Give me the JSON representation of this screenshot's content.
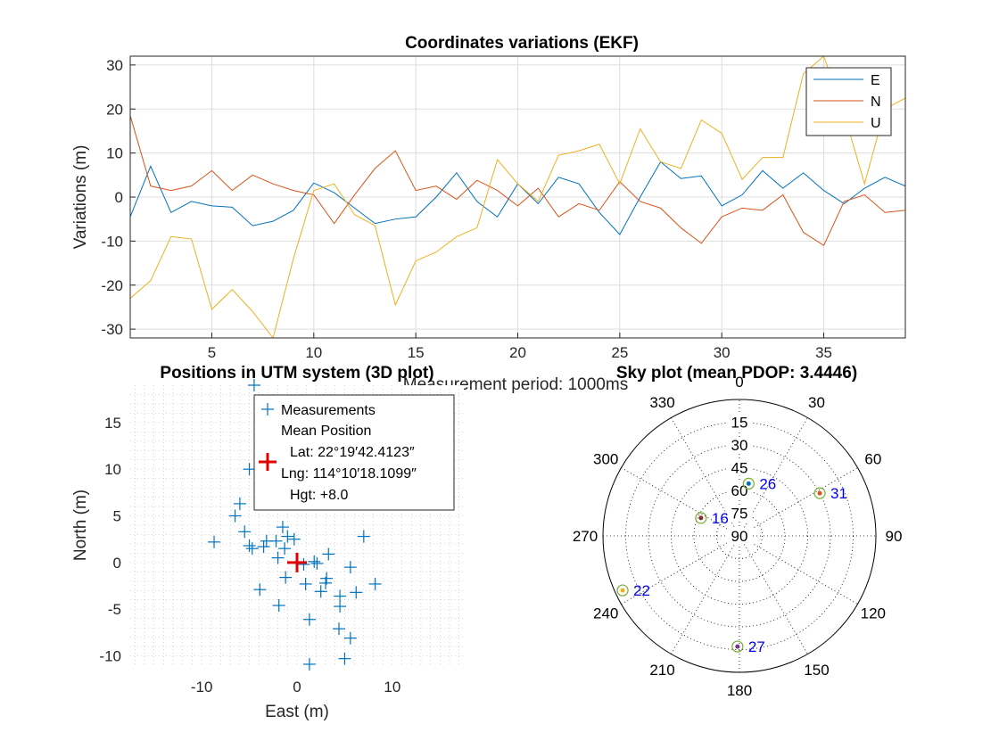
{
  "colors": {
    "E": "#0072BD",
    "N": "#D95319",
    "U": "#EDB120",
    "measurement": "#0072BD",
    "mean_position": "#E00000",
    "sat_label": "#0000EE",
    "grid": "#DDDDDD"
  },
  "chart_data": [
    {
      "type": "line",
      "title": "Coordinates variations (EKF)",
      "xlabel": "Measurement period: 1000ms",
      "ylabel": "Variations (m)",
      "xlim": [
        1,
        39
      ],
      "ylim": [
        -32,
        32
      ],
      "xticks": [
        5,
        10,
        15,
        20,
        25,
        30,
        35
      ],
      "yticks": [
        -30,
        -20,
        -10,
        0,
        10,
        20,
        30
      ],
      "grid": true,
      "legend_position": "top-right",
      "x": [
        1,
        2,
        3,
        4,
        5,
        6,
        7,
        8,
        9,
        10,
        11,
        12,
        13,
        14,
        15,
        16,
        17,
        18,
        19,
        20,
        21,
        22,
        23,
        24,
        25,
        26,
        27,
        28,
        29,
        30,
        31,
        32,
        33,
        34,
        35,
        36,
        37,
        38,
        39
      ],
      "series": [
        {
          "name": "E",
          "values": [
            -4.5,
            7,
            -3.5,
            -1,
            -2,
            -2.3,
            -6.5,
            -5.5,
            -3,
            3.2,
            1,
            -2.5,
            -6,
            -5,
            -4.5,
            0,
            5.5,
            -1,
            -4.5,
            3,
            -1.5,
            4.5,
            3,
            -3.5,
            -8.5,
            0,
            8,
            4.2,
            4.8,
            -2,
            0.5,
            6,
            2,
            5.5,
            1.5,
            -1.5,
            2,
            4.5,
            2.5
          ]
        },
        {
          "name": "N",
          "values": [
            18.5,
            2.5,
            1.5,
            2.5,
            6,
            1.5,
            5,
            3,
            1.5,
            0.5,
            -6,
            0.5,
            6.5,
            10.5,
            1.5,
            2.5,
            -0.5,
            3.8,
            1.5,
            -2,
            2,
            -4.5,
            -1.5,
            -3,
            3.5,
            -1,
            -2.5,
            -7,
            -10.5,
            -4.5,
            -2.5,
            -3,
            0.5,
            -8,
            -11,
            -1,
            0.5,
            -3.5,
            -3
          ]
        },
        {
          "name": "U",
          "values": [
            -23,
            -19,
            -9,
            -9.5,
            -25.5,
            -21,
            -26,
            -32,
            -14,
            1.5,
            3,
            -4,
            -6.5,
            -24.5,
            -14.5,
            -12.5,
            -9,
            -7,
            8.5,
            3,
            -1,
            9.5,
            10.5,
            12,
            3,
            15.5,
            8,
            6.5,
            17.5,
            14.5,
            4,
            9,
            9,
            28,
            32,
            19,
            3,
            20,
            22.5
          ]
        }
      ]
    },
    {
      "type": "scatter",
      "title": "Positions in UTM system (3D plot)",
      "xlabel": "East (m)",
      "ylabel": "North (m)",
      "xlim": [
        -17.5,
        17.5
      ],
      "ylim": [
        -11,
        19
      ],
      "xticks": [
        -10,
        0,
        10
      ],
      "yticks": [
        -10,
        -5,
        0,
        5,
        10,
        15
      ],
      "grid": true,
      "legend_position": "top",
      "legend": {
        "measurements": "Measurements",
        "mean_title": "Mean Position",
        "lat": "Lat: 22°19′42.4123″",
        "lng": "Lng: 114°10′18.1099″",
        "hgt": "Hgt: +8.0"
      },
      "mean_position": {
        "x": 0,
        "y": 0
      },
      "points": [
        {
          "x": -4.5,
          "y": 19
        },
        {
          "x": -5,
          "y": 10
        },
        {
          "x": -6,
          "y": 6.3
        },
        {
          "x": -6.5,
          "y": 5
        },
        {
          "x": -5.5,
          "y": 3.3
        },
        {
          "x": -8.7,
          "y": 2.2
        },
        {
          "x": -4.7,
          "y": 1.5
        },
        {
          "x": -5,
          "y": 1.8
        },
        {
          "x": -3.5,
          "y": 1.7
        },
        {
          "x": -3.2,
          "y": 2.3
        },
        {
          "x": -2.2,
          "y": 2.3
        },
        {
          "x": -1.5,
          "y": 3.8
        },
        {
          "x": -1,
          "y": 2.8
        },
        {
          "x": -0.3,
          "y": 2.5
        },
        {
          "x": -2,
          "y": 0.5
        },
        {
          "x": -1.3,
          "y": 1.5
        },
        {
          "x": 0.7,
          "y": -0.2
        },
        {
          "x": 1.8,
          "y": 0.1
        },
        {
          "x": 2.1,
          "y": -0.1
        },
        {
          "x": 3.3,
          "y": 0.9
        },
        {
          "x": 7,
          "y": 2.8
        },
        {
          "x": -1.2,
          "y": -1.6
        },
        {
          "x": 0.9,
          "y": -2.3
        },
        {
          "x": 2.5,
          "y": -3.1
        },
        {
          "x": 3,
          "y": -2.2
        },
        {
          "x": 3.1,
          "y": -1.7
        },
        {
          "x": 5.6,
          "y": -0.5
        },
        {
          "x": 8.2,
          "y": -2.3
        },
        {
          "x": 6.2,
          "y": -3.2
        },
        {
          "x": -3.9,
          "y": -2.9
        },
        {
          "x": 4.5,
          "y": -3.6
        },
        {
          "x": 4.5,
          "y": -4.7
        },
        {
          "x": -1.9,
          "y": -4.6
        },
        {
          "x": 1.3,
          "y": -6.1
        },
        {
          "x": 4.4,
          "y": -7.1
        },
        {
          "x": 5.6,
          "y": -8.1
        },
        {
          "x": 5,
          "y": -10.3
        },
        {
          "x": 1.3,
          "y": -10.9
        }
      ]
    },
    {
      "type": "polar",
      "title": "Sky plot (mean PDOP: 3.4446)",
      "azimuth_labels": [
        "0",
        "30",
        "60",
        "90",
        "120",
        "150",
        "180",
        "210",
        "240",
        "270",
        "300",
        "330"
      ],
      "elevation_labels": [
        "15",
        "30",
        "45",
        "60",
        "75",
        "90"
      ],
      "satellites": [
        {
          "prn": "26",
          "azimuth": 10,
          "elevation": 55,
          "dot": "#0072BD"
        },
        {
          "prn": "31",
          "azimuth": 62,
          "elevation": 30,
          "dot": "#D95319"
        },
        {
          "prn": "16",
          "azimuth": 295,
          "elevation": 62,
          "dot": "#7E2F2F"
        },
        {
          "prn": "22",
          "azimuth": 245,
          "elevation": 5,
          "dot": "#EDB120"
        },
        {
          "prn": "27",
          "azimuth": 181,
          "elevation": 17,
          "dot": "#7E2F8E"
        }
      ]
    }
  ]
}
